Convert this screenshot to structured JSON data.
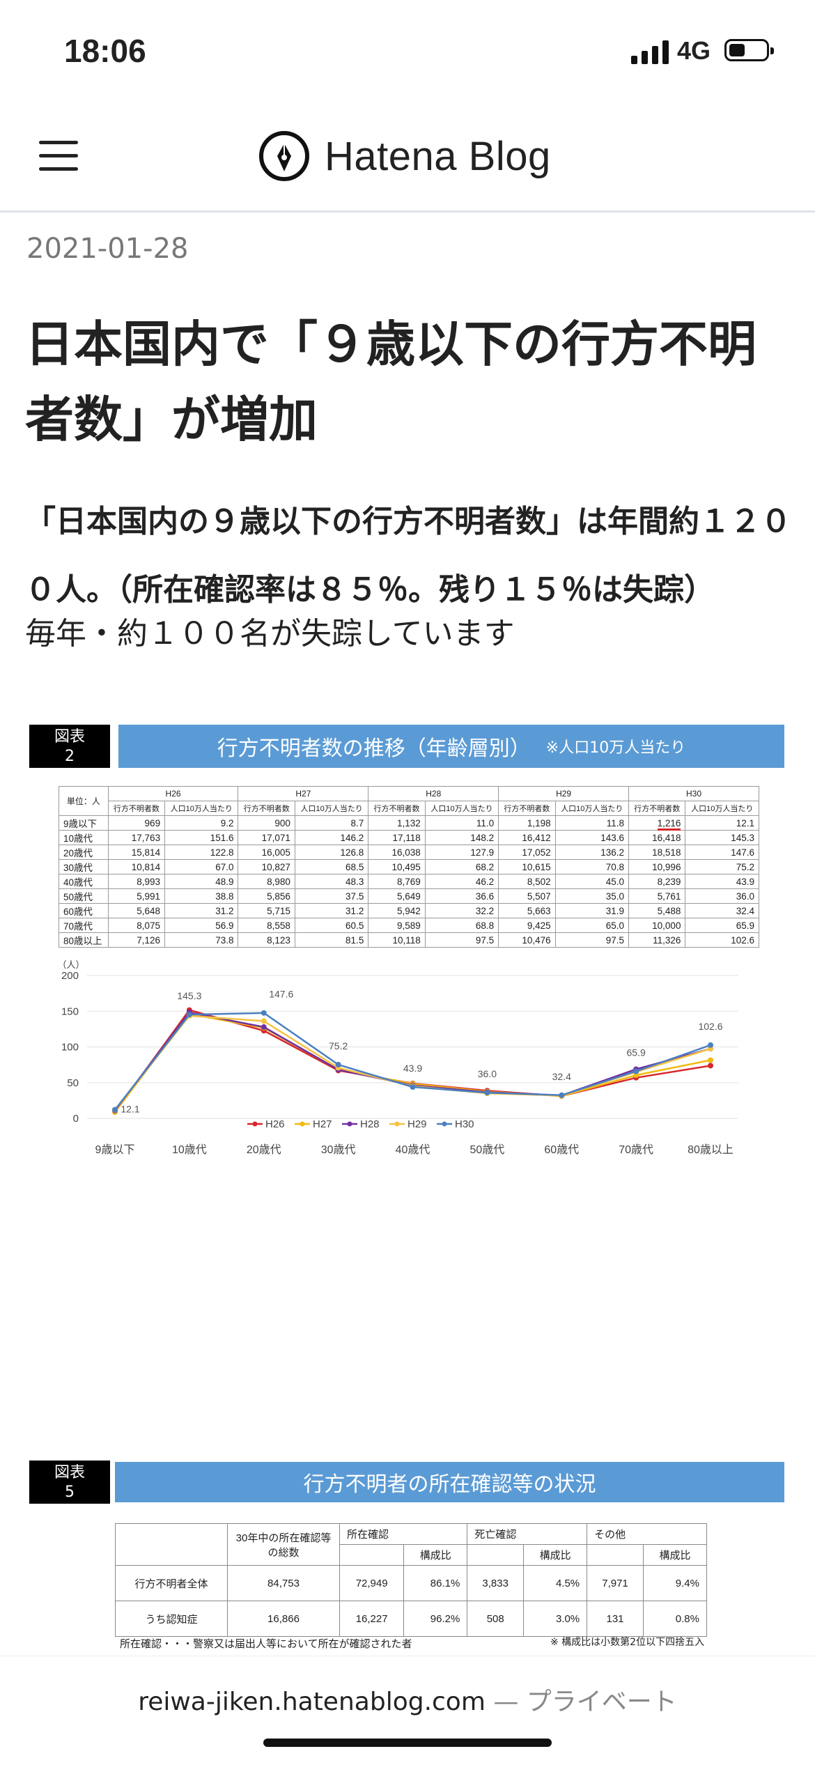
{
  "status": {
    "time": "18:06",
    "network": "4G"
  },
  "header": {
    "app_name": "Hatena Blog"
  },
  "post": {
    "date": "2021-01-28",
    "title": "日本国内で「９歳以下の行方不明者数」が増加",
    "lead_bold": "「日本国内の９歳以下の行方不明者数」は年間約１２００人。（所在確認率は８５％。残り１５％は失踪）",
    "lead_plain": "毎年・約１００名が失踪しています"
  },
  "figure2": {
    "label_line1": "図表",
    "label_line2": "2",
    "banner": "行方不明者数の推移（年齢層別）",
    "banner_note": "※人口10万人当たり",
    "unit_label": "単位：人",
    "years": [
      "H26",
      "H27",
      "H28",
      "H29",
      "H30"
    ],
    "subheaders": [
      "行方不明者数",
      "人口10万人当たり"
    ],
    "rows": [
      {
        "age": "9歳以下",
        "vals": [
          "969",
          "9.2",
          "900",
          "8.7",
          "1,132",
          "11.0",
          "1,198",
          "11.8",
          "1,216",
          "12.1"
        ]
      },
      {
        "age": "10歳代",
        "vals": [
          "17,763",
          "151.6",
          "17,071",
          "146.2",
          "17,118",
          "148.2",
          "16,412",
          "143.6",
          "16,418",
          "145.3"
        ]
      },
      {
        "age": "20歳代",
        "vals": [
          "15,814",
          "122.8",
          "16,005",
          "126.8",
          "16,038",
          "127.9",
          "17,052",
          "136.2",
          "18,518",
          "147.6"
        ]
      },
      {
        "age": "30歳代",
        "vals": [
          "10,814",
          "67.0",
          "10,827",
          "68.5",
          "10,495",
          "68.2",
          "10,615",
          "70.8",
          "10,996",
          "75.2"
        ]
      },
      {
        "age": "40歳代",
        "vals": [
          "8,993",
          "48.9",
          "8,980",
          "48.3",
          "8,769",
          "46.2",
          "8,502",
          "45.0",
          "8,239",
          "43.9"
        ]
      },
      {
        "age": "50歳代",
        "vals": [
          "5,991",
          "38.8",
          "5,856",
          "37.5",
          "5,649",
          "36.6",
          "5,507",
          "35.0",
          "5,761",
          "36.0"
        ]
      },
      {
        "age": "60歳代",
        "vals": [
          "5,648",
          "31.2",
          "5,715",
          "31.2",
          "5,942",
          "32.2",
          "5,663",
          "31.9",
          "5,488",
          "32.4"
        ]
      },
      {
        "age": "70歳代",
        "vals": [
          "8,075",
          "56.9",
          "8,558",
          "60.5",
          "9,589",
          "68.8",
          "9,425",
          "65.0",
          "10,000",
          "65.9"
        ]
      },
      {
        "age": "80歳以上",
        "vals": [
          "7,126",
          "73.8",
          "8,123",
          "81.5",
          "10,118",
          "97.5",
          "10,476",
          "97.5",
          "11,326",
          "102.6"
        ]
      }
    ]
  },
  "chart_data": {
    "type": "line",
    "ylabel": "（人）",
    "ylim": [
      0,
      200
    ],
    "yticks": [
      0,
      50,
      100,
      150,
      200
    ],
    "categories": [
      "9歳以下",
      "10歳代",
      "20歳代",
      "30歳代",
      "40歳代",
      "50歳代",
      "60歳代",
      "70歳代",
      "80歳以上"
    ],
    "series": [
      {
        "name": "H26",
        "color": "#d6262b",
        "values": [
          9.2,
          151.6,
          122.8,
          67.0,
          48.9,
          38.8,
          31.2,
          56.9,
          73.8
        ]
      },
      {
        "name": "H27",
        "color": "#f2b90f",
        "values": [
          8.7,
          146.2,
          126.8,
          68.5,
          48.3,
          37.5,
          31.2,
          60.5,
          81.5
        ]
      },
      {
        "name": "H28",
        "color": "#7030a0",
        "values": [
          11.0,
          148.2,
          127.9,
          68.2,
          46.2,
          36.6,
          32.2,
          68.8,
          97.5
        ]
      },
      {
        "name": "H29",
        "color": "#f5c242",
        "values": [
          11.8,
          143.6,
          136.2,
          70.8,
          45.0,
          35.0,
          31.9,
          65.0,
          97.5
        ]
      },
      {
        "name": "H30",
        "color": "#4a7fc1",
        "values": [
          12.1,
          145.3,
          147.6,
          75.2,
          43.9,
          36.0,
          32.4,
          65.9,
          102.6
        ]
      }
    ],
    "data_labels": [
      "12.1",
      "145.3",
      "147.6",
      "75.2",
      "43.9",
      "36.0",
      "32.4",
      "65.9",
      "102.6"
    ],
    "legend_position": "bottom"
  },
  "figure5": {
    "label_line1": "図表",
    "label_line2": "5",
    "banner": "行方不明者の所在確認等の状況",
    "head_total": "30年中の所在確認等の総数",
    "head_confirmed": "所在確認",
    "head_death": "死亡確認",
    "head_other": "その他",
    "head_ratio": "構成比",
    "rows": [
      {
        "label": "行方不明者全体",
        "vals": [
          "84,753",
          "72,949",
          "86.1%",
          "3,833",
          "4.5%",
          "7,971",
          "9.4%"
        ]
      },
      {
        "label": "うち認知症",
        "vals": [
          "16,866",
          "16,227",
          "96.2%",
          "508",
          "3.0%",
          "131",
          "0.8%"
        ]
      }
    ],
    "note_left": "所在確認・・・警察又は届出人等において所在が確認された者",
    "note_right": "※ 構成比は小数第2位以下四捨五入"
  },
  "footer": {
    "url": "reiwa-jiken.hatenablog.com",
    "privacy": " — プライベート"
  }
}
